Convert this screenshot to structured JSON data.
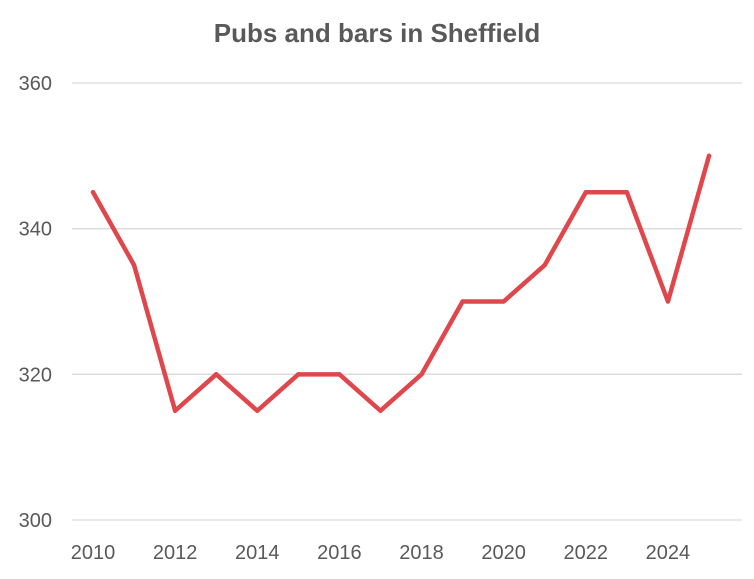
{
  "chart_data": {
    "type": "line",
    "title": "Pubs and bars in Sheffield",
    "xlabel": "",
    "ylabel": "",
    "x": [
      2010,
      2011,
      2012,
      2013,
      2014,
      2015,
      2016,
      2017,
      2018,
      2019,
      2020,
      2021,
      2022,
      2023,
      2024,
      2025
    ],
    "series": [
      {
        "name": "",
        "values": [
          345,
          335,
          315,
          320,
          315,
          320,
          320,
          315,
          320,
          330,
          330,
          335,
          345,
          345,
          330,
          350
        ],
        "color": "#e0474c"
      }
    ],
    "ylim": [
      300,
      360
    ],
    "xlim": [
      2010,
      2025
    ],
    "y_ticks": [
      "300",
      "320",
      "340",
      "360"
    ],
    "x_ticks": [
      "2010",
      "2012",
      "2014",
      "2016",
      "2018",
      "2020",
      "2022",
      "2024"
    ],
    "grid": true,
    "legend": "none",
    "gridline_color": "#d9d9d9"
  }
}
